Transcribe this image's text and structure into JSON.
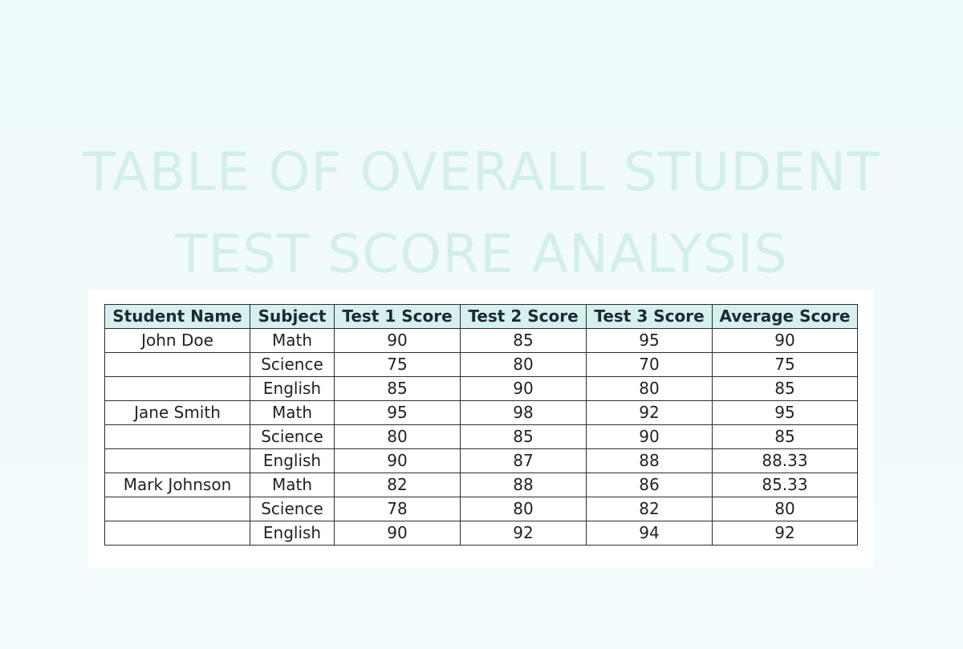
{
  "title": {
    "line1": "TABLE OF OVERALL STUDENT",
    "line2": "TEST SCORE ANALYSIS"
  },
  "table": {
    "headers": [
      "Student Name",
      "Subject",
      "Test 1 Score",
      "Test 2 Score",
      "Test 3 Score",
      "Average Score"
    ],
    "rows": [
      [
        "John Doe",
        "Math",
        "90",
        "85",
        "95",
        "90"
      ],
      [
        "",
        "Science",
        "75",
        "80",
        "70",
        "75"
      ],
      [
        "",
        "English",
        "85",
        "90",
        "80",
        "85"
      ],
      [
        "Jane Smith",
        "Math",
        "95",
        "98",
        "92",
        "95"
      ],
      [
        "",
        "Science",
        "80",
        "85",
        "90",
        "85"
      ],
      [
        "",
        "English",
        "90",
        "87",
        "88",
        "88.33"
      ],
      [
        "Mark Johnson",
        "Math",
        "82",
        "88",
        "86",
        "85.33"
      ],
      [
        "",
        "Science",
        "78",
        "80",
        "82",
        "80"
      ],
      [
        "",
        "English",
        "90",
        "92",
        "94",
        "92"
      ]
    ]
  },
  "colors": {
    "title": "#d3efe9",
    "header_bg": "#d4f0ef",
    "page_bg": "#eef9fb",
    "sheet_bg": "#ffffff",
    "border": "#2e2e2e"
  }
}
